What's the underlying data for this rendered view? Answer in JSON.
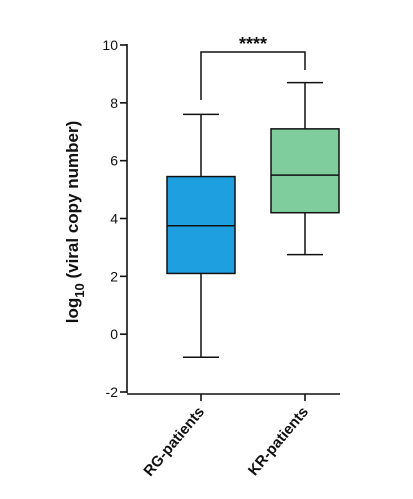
{
  "chart_data": {
    "type": "box",
    "ylabel_base": "log",
    "ylabel_sub": "10",
    "ylabel_rest": " (viral copy number)",
    "ylim": [
      -2,
      10
    ],
    "yticks": [
      -2,
      0,
      2,
      4,
      6,
      8,
      10
    ],
    "categories": [
      "RG-patients",
      "KR-patients"
    ],
    "boxes": [
      {
        "category": "RG-patients",
        "min": -0.8,
        "q1": 2.1,
        "median": 3.75,
        "q3": 5.45,
        "max": 7.6,
        "color": "#1e9fe0"
      },
      {
        "category": "KR-patients",
        "min": 2.75,
        "q1": 4.2,
        "median": 5.5,
        "q3": 7.1,
        "max": 8.7,
        "color": "#7fcc9c"
      }
    ],
    "significance": {
      "label": "****",
      "between": [
        "RG-patients",
        "KR-patients"
      ]
    },
    "grid": false,
    "legend": "none"
  }
}
